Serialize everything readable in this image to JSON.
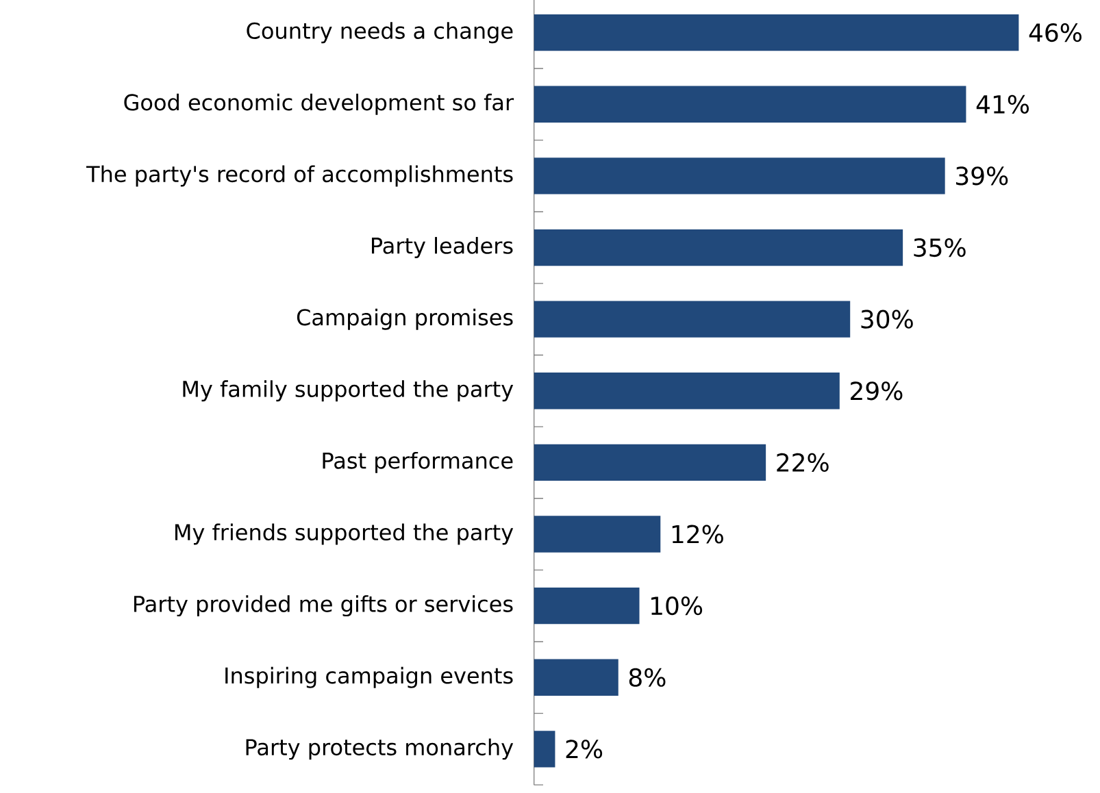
{
  "chart_data": {
    "type": "bar",
    "orientation": "horizontal",
    "color": "#21497b",
    "categories": [
      "Country needs a change",
      "Good economic development so far",
      "The party's record of accomplishments",
      "Party leaders",
      "Campaign promises",
      "My family supported the party",
      "Past performance",
      "My friends supported the party",
      "Party provided me gifts or services",
      "Inspiring campaign events",
      "Party protects monarchy"
    ],
    "values": [
      46,
      41,
      39,
      35,
      30,
      29,
      22,
      12,
      10,
      8,
      2
    ],
    "value_labels": [
      "46%",
      "41%",
      "39%",
      "35%",
      "30%",
      "29%",
      "22%",
      "12%",
      "10%",
      "8%",
      "2%"
    ]
  }
}
